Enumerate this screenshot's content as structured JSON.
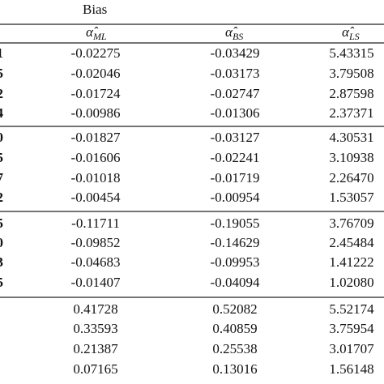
{
  "table": {
    "caption": "Bias",
    "header": [
      {
        "symbol": "α̂",
        "sub": "ML"
      },
      {
        "symbol": "α̂",
        "sub": "BS"
      },
      {
        "symbol": "α̂",
        "sub": "LS"
      }
    ],
    "row_stubs": [
      "1",
      "5",
      "2",
      "4",
      "0",
      "5",
      "7",
      "2",
      "5",
      "0",
      "3",
      "5",
      null,
      null,
      null,
      null
    ],
    "rows": [
      [
        "-0.02275",
        "-0.03429",
        "5.43315"
      ],
      [
        "-0.02046",
        "-0.03173",
        "3.79508"
      ],
      [
        "-0.01724",
        "-0.02747",
        "2.87598"
      ],
      [
        "-0.00986",
        "-0.01306",
        "2.37371"
      ],
      [
        "-0.01827",
        "-0.03127",
        "4.30531"
      ],
      [
        "-0.01606",
        "-0.02241",
        "3.10938"
      ],
      [
        "-0.01018",
        "-0.01719",
        "2.26470"
      ],
      [
        "-0.00454",
        "-0.00954",
        "1.53057"
      ],
      [
        "-0.11711",
        "-0.19055",
        "3.76709"
      ],
      [
        "-0.09852",
        "-0.14629",
        "2.45484"
      ],
      [
        "-0.04683",
        "-0.09953",
        "1.41222"
      ],
      [
        "-0.01407",
        "-0.04094",
        "1.02080"
      ],
      [
        "0.41728",
        "0.52082",
        "5.52174"
      ],
      [
        "0.33593",
        "0.40859",
        "3.75954"
      ],
      [
        "0.21387",
        "0.25538",
        "3.01707"
      ],
      [
        "0.07165",
        "0.13016",
        "1.56148"
      ]
    ]
  }
}
